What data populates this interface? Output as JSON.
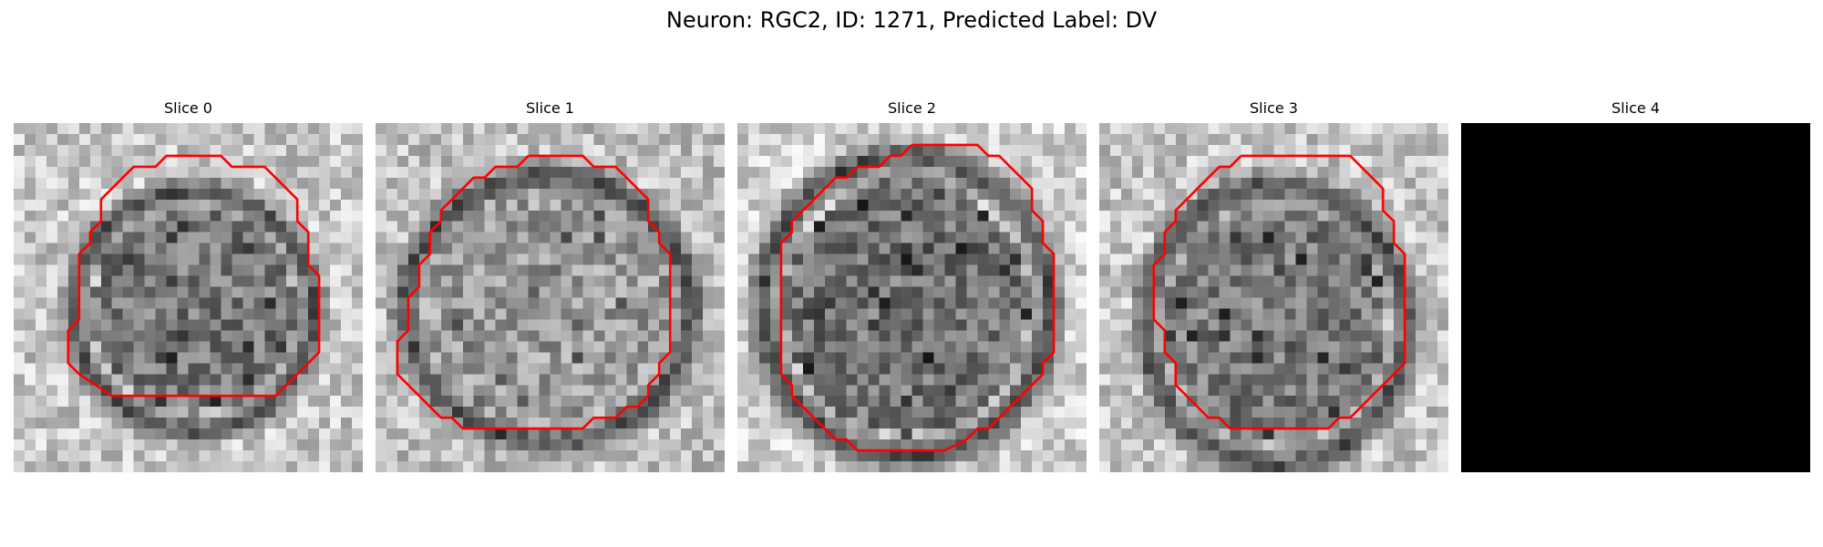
{
  "figure": {
    "suptitle": "Neuron: RGC2, ID: 1271, Predicted Label: DV"
  },
  "colors": {
    "background": "#ffffff",
    "contour": "#ff0000",
    "empty_slice": "#000000"
  },
  "slices": [
    {
      "title": "Slice 0",
      "content": "grayscale-microscopy-patch-with-red-contour"
    },
    {
      "title": "Slice 1",
      "content": "grayscale-microscopy-patch-with-red-contour"
    },
    {
      "title": "Slice 2",
      "content": "grayscale-microscopy-patch-with-red-contour"
    },
    {
      "title": "Slice 3",
      "content": "grayscale-microscopy-patch-with-red-contour"
    },
    {
      "title": "Slice 4",
      "content": "all-black-patch"
    }
  ]
}
